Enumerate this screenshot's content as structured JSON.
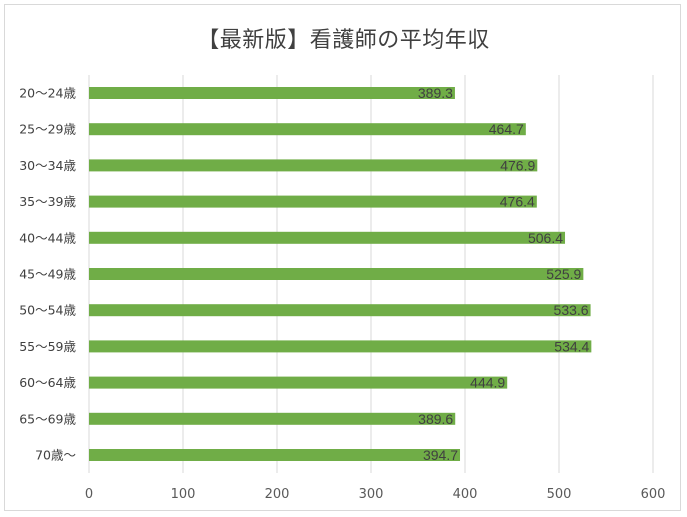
{
  "chart_data": {
    "type": "bar",
    "orientation": "horizontal",
    "title": "【最新版】看護師の平均年収",
    "categories": [
      "20～24歳",
      "25～29歳",
      "30～34歳",
      "35～39歳",
      "40～44歳",
      "45～49歳",
      "50～54歳",
      "55～59歳",
      "60～64歳",
      "65～69歳",
      "70歳～"
    ],
    "values": [
      389.3,
      464.7,
      476.9,
      476.4,
      506.4,
      525.9,
      533.6,
      534.4,
      444.9,
      389.6,
      394.7
    ],
    "data_labels": [
      "389.3",
      "464.7",
      "476.9",
      "476.4",
      "506.4",
      "525.9",
      "533.6",
      "534.4",
      "444.9",
      "389.6",
      "394.7"
    ],
    "xlim": [
      0,
      600
    ],
    "x_ticks": [
      0,
      100,
      200,
      300,
      400,
      500,
      600
    ],
    "x_tick_labels": [
      "0",
      "100",
      "200",
      "300",
      "400",
      "500",
      "600"
    ],
    "xlabel": "",
    "ylabel": "",
    "grid": "vertical",
    "legend": "none",
    "bar_color": "#70ad47",
    "grid_color": "#d9d9d9"
  }
}
